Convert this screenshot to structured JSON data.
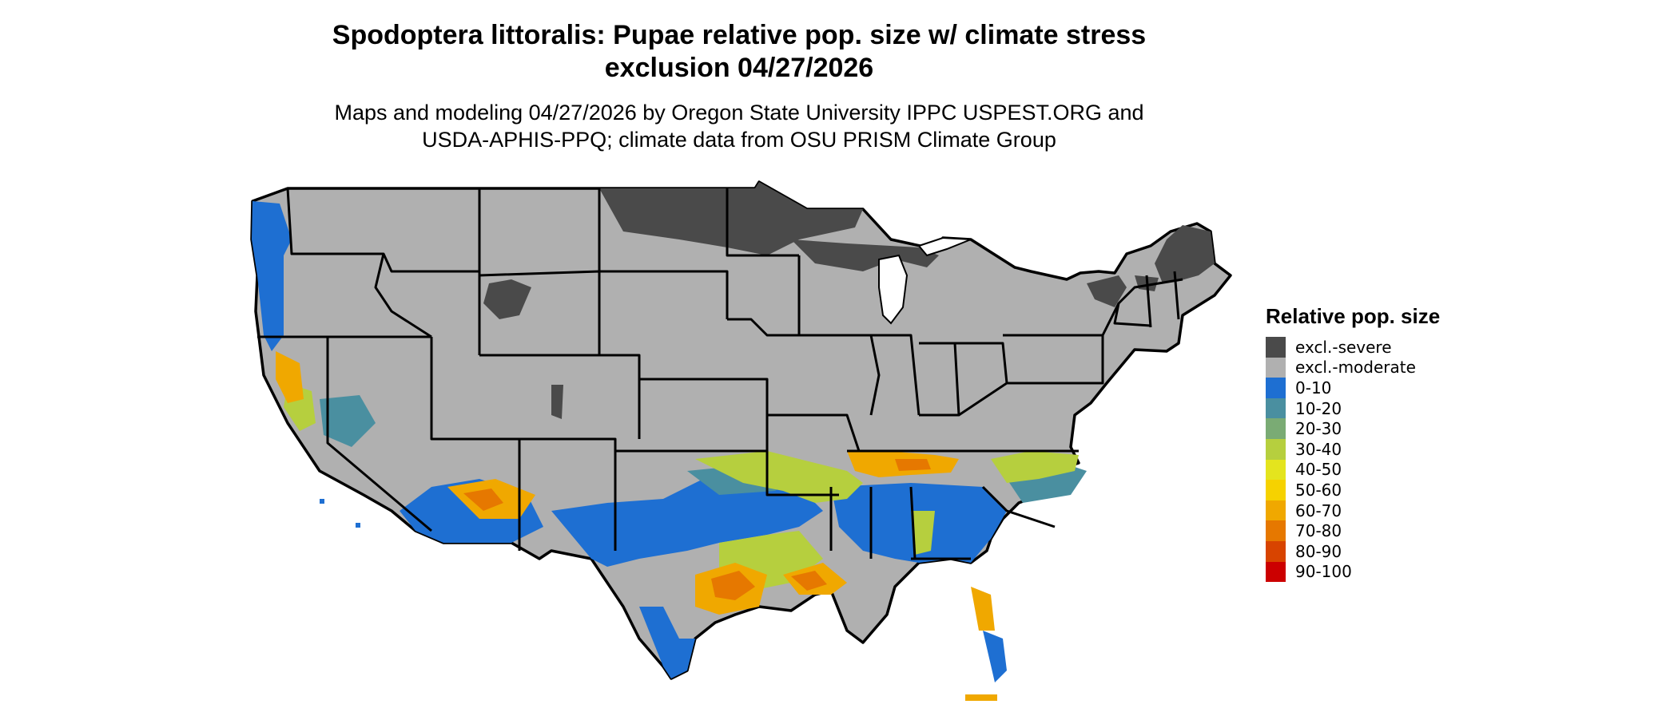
{
  "title_line1": "Spodoptera littoralis: Pupae relative pop. size w/ climate stress",
  "title_line2": "exclusion 04/27/2026",
  "subtitle_line1": "Maps and modeling 04/27/2026 by Oregon State University IPPC USPEST.ORG and",
  "subtitle_line2": "USDA-APHIS-PPQ; climate data from OSU PRISM Climate Group",
  "legend": {
    "title": "Relative pop. size",
    "items": [
      {
        "label": "excl.-severe",
        "color": "#4a4a4a"
      },
      {
        "label": "excl.-moderate",
        "color": "#b0b0b0"
      },
      {
        "label": "0-10",
        "color": "#1e6fd2"
      },
      {
        "label": "10-20",
        "color": "#4a8fa0"
      },
      {
        "label": "20-30",
        "color": "#7aab74"
      },
      {
        "label": "30-40",
        "color": "#b6cf3e"
      },
      {
        "label": "40-50",
        "color": "#e4e41e"
      },
      {
        "label": "50-60",
        "color": "#f6d200"
      },
      {
        "label": "60-70",
        "color": "#f0a800"
      },
      {
        "label": "70-80",
        "color": "#e67800"
      },
      {
        "label": "80-90",
        "color": "#d84400"
      },
      {
        "label": "90-100",
        "color": "#cc0000"
      }
    ]
  }
}
